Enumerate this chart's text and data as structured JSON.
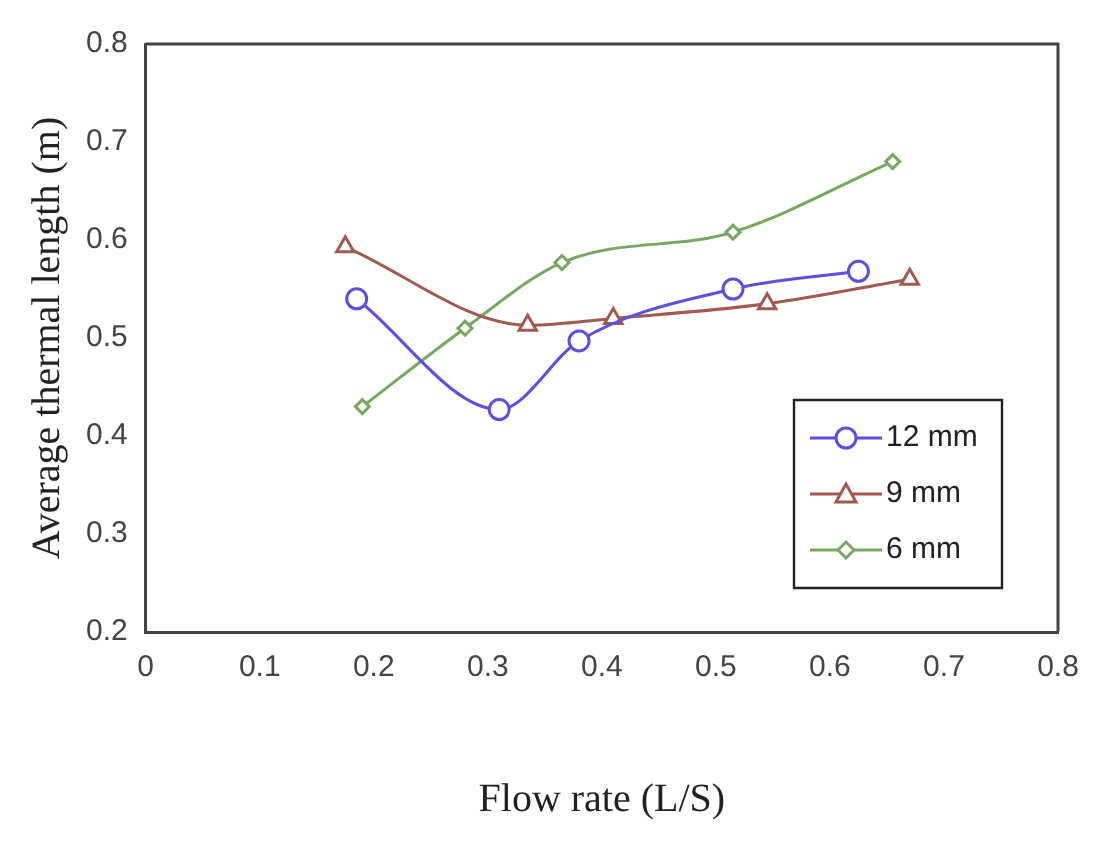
{
  "chart_data": {
    "type": "line",
    "xlabel": "Flow rate (L/S)",
    "ylabel": "Average thermal length (m)",
    "xlim": [
      0,
      0.8
    ],
    "xticks": [
      0,
      0.1,
      0.2,
      0.3,
      0.4,
      0.5,
      0.6,
      0.7,
      0.8
    ],
    "ylim": [
      0.2,
      0.8
    ],
    "yticks": [
      0.2,
      0.3,
      0.4,
      0.5,
      0.6,
      0.7,
      0.8
    ],
    "grid": false,
    "legend": "bottom right",
    "series": [
      {
        "name": "12 mm",
        "color": "#5b4fe0",
        "marker": "circle",
        "x": [
          0.185,
          0.31,
          0.38,
          0.515,
          0.625
        ],
        "values": [
          0.54,
          0.427,
          0.497,
          0.55,
          0.568
        ]
      },
      {
        "name": "9 mm",
        "color": "#a05a50",
        "marker": "triangle",
        "x": [
          0.175,
          0.335,
          0.41,
          0.545,
          0.67
        ],
        "values": [
          0.593,
          0.513,
          0.52,
          0.535,
          0.56
        ]
      },
      {
        "name": "6 mm",
        "color": "#78a860",
        "marker": "diamond",
        "x": [
          0.19,
          0.28,
          0.365,
          0.515,
          0.655
        ],
        "values": [
          0.43,
          0.51,
          0.577,
          0.608,
          0.68
        ]
      }
    ]
  }
}
